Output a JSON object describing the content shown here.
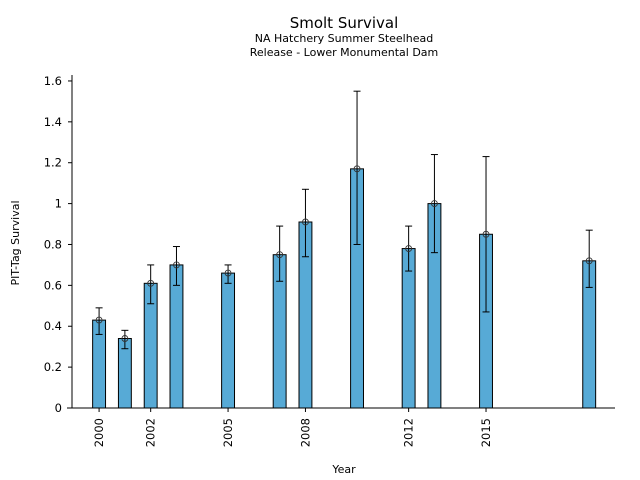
{
  "chart_data": {
    "type": "bar",
    "title": "Smolt Survival",
    "subtitle_lines": [
      "NA Hatchery Summer Steelhead",
      "Release - Lower Monumental Dam"
    ],
    "xlabel": "Year",
    "ylabel": "PIT-Tag Survival",
    "xlim": [
      1998.95,
      2020
    ],
    "ylim": [
      0,
      1.63
    ],
    "xticks": [
      2000,
      2002,
      2005,
      2008,
      2012,
      2015
    ],
    "xtick_labels": [
      "2000",
      "2002",
      "2005",
      "2008",
      "2012",
      "2015"
    ],
    "yticks": [
      0,
      0.2,
      0.4,
      0.6,
      0.8,
      1,
      1.2,
      1.4,
      1.6
    ],
    "ytick_labels": [
      "0",
      "0.2",
      "0.4",
      "0.6",
      "0.8",
      "1",
      "1.2",
      "1.4",
      "1.6"
    ],
    "grid": false,
    "bar_color": "#57aad6",
    "edge_color": "#000000",
    "series": [
      {
        "name": "Survival",
        "x": [
          2000,
          2001,
          2002,
          2003,
          2005,
          2007,
          2008,
          2010,
          2012,
          2013,
          2015,
          2019
        ],
        "values": [
          0.43,
          0.34,
          0.61,
          0.7,
          0.66,
          0.75,
          0.91,
          1.17,
          0.78,
          1.0,
          0.85,
          0.72
        ],
        "error_lower": [
          0.36,
          0.29,
          0.51,
          0.6,
          0.61,
          0.62,
          0.74,
          0.8,
          0.67,
          0.76,
          0.47,
          0.59
        ],
        "error_upper": [
          0.49,
          0.38,
          0.7,
          0.79,
          0.7,
          0.89,
          1.07,
          1.55,
          0.89,
          1.24,
          1.23,
          0.87
        ]
      }
    ]
  }
}
